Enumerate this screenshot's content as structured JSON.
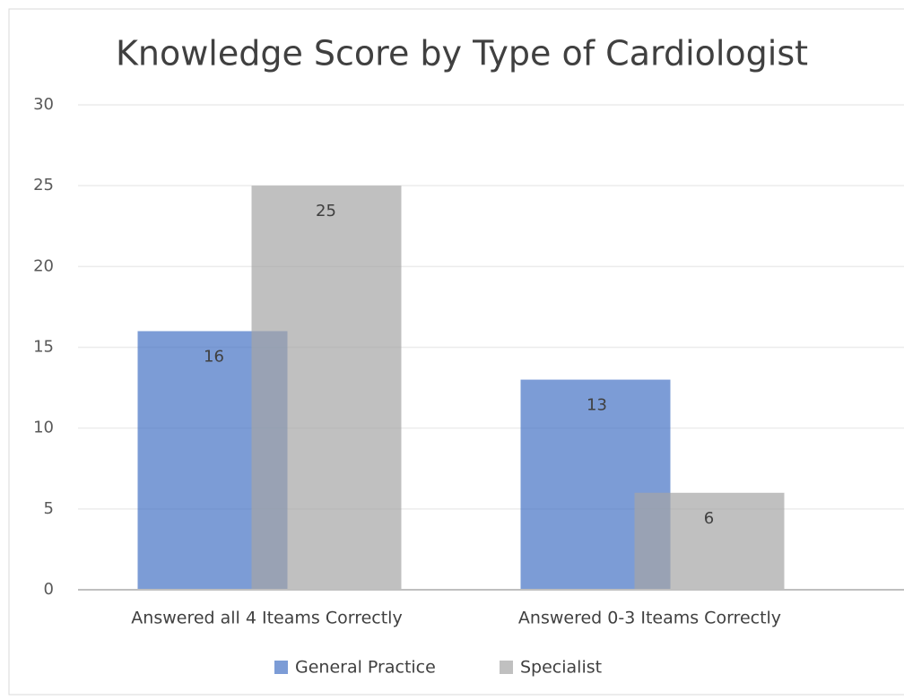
{
  "chart_data": {
    "type": "bar",
    "title": "Knowledge Score by Type of Cardiologist",
    "categories": [
      "Answered all 4 Iteams Correctly",
      "Answered 0-3 Iteams Correctly"
    ],
    "series": [
      {
        "name": "General Practice",
        "color": "#4472c4",
        "values": [
          16,
          13
        ]
      },
      {
        "name": "Specialist",
        "color": "#a5a5a5",
        "values": [
          25,
          6
        ]
      }
    ],
    "ylim": [
      0,
      30
    ],
    "yticks": [
      0,
      5,
      10,
      15,
      20,
      25,
      30
    ],
    "grid": true,
    "legend": "bottom"
  }
}
